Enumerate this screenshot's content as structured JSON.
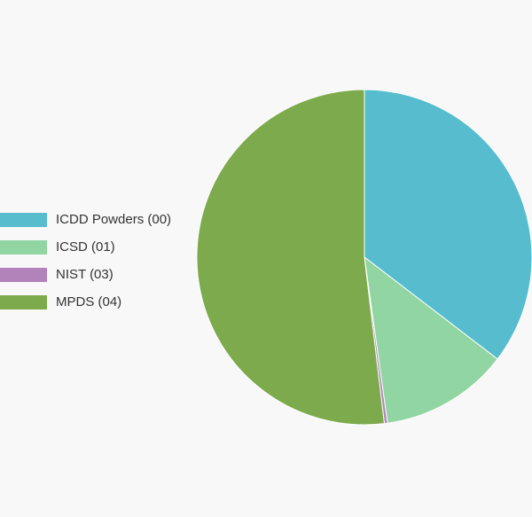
{
  "chart_data": {
    "type": "pie",
    "title": "",
    "legend_position": "left",
    "start_angle": "top",
    "direction": "clockwise",
    "series": [
      {
        "name": "",
        "slices": [
          {
            "label": "ICDD Powders (00)",
            "value": 35.4,
            "color": "#57bdce"
          },
          {
            "label": "ICSD (01)",
            "value": 12.4,
            "color": "#90d5a2"
          },
          {
            "label": "NIST (03)",
            "value": 0.3,
            "color": "#b283bb"
          },
          {
            "label": "MPDS (04)",
            "value": 51.9,
            "color": "#7eaa4e"
          }
        ]
      }
    ]
  }
}
